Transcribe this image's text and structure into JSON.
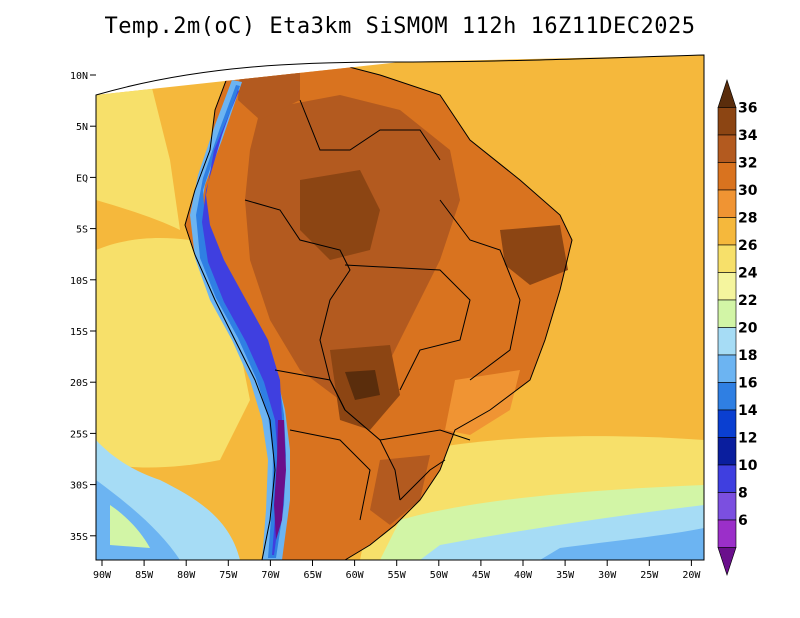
{
  "title": "Temp.2m(oC) Eta3km SiSMOM 112h 16Z11DEC2025",
  "map": {
    "lat_ticks": [
      "10N",
      "5N",
      "EQ",
      "5S",
      "10S",
      "15S",
      "20S",
      "25S",
      "30S",
      "35S"
    ],
    "lon_ticks": [
      "90W",
      "85W",
      "80W",
      "75W",
      "70W",
      "65W",
      "60W",
      "55W",
      "50W",
      "45W",
      "40W",
      "35W",
      "30W",
      "25W",
      "20W"
    ]
  },
  "colorbar": {
    "labels": [
      "36",
      "34",
      "32",
      "30",
      "28",
      "26",
      "24",
      "22",
      "20",
      "18",
      "16",
      "14",
      "12",
      "10",
      "8",
      "6"
    ],
    "colors": [
      "#5a2d0c",
      "#8c4513",
      "#b35a1f",
      "#d9731f",
      "#f09433",
      "#f5b83c",
      "#f7e06a",
      "#f5f59e",
      "#d2f5a6",
      "#a6dcf5",
      "#6cb4f2",
      "#2f7fe3",
      "#0a3fd1",
      "#0a1e9e",
      "#3f3fe0",
      "#7b4fe0",
      "#9b2fc9",
      "#6a0f8c"
    ]
  },
  "legend_semantics": {
    "unit": "oC",
    "min": 6,
    "max": 36,
    "step": 2
  }
}
